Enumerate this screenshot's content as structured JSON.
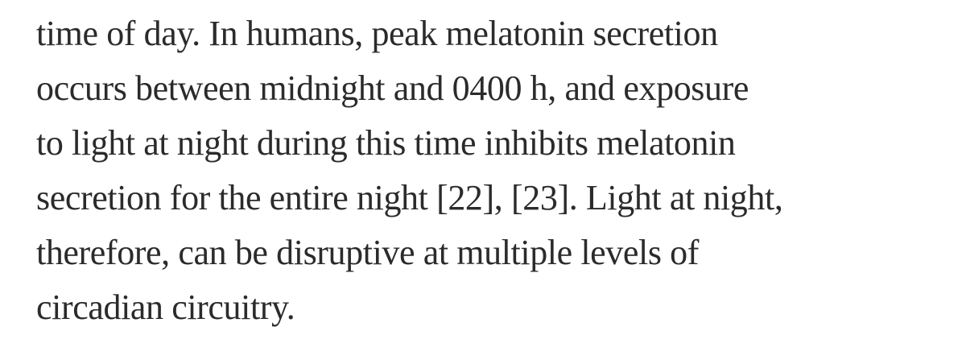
{
  "article": {
    "lines": [
      "time of day. In humans, peak melatonin secretion",
      "occurs between midnight and 0400 h, and exposure",
      "to light at night during this time inhibits melatonin",
      "secretion for the entire night [22], [23]. Light at night,",
      "therefore, can be disruptive at multiple levels of",
      "circadian circuitry."
    ],
    "text_color": "#2b2b2b",
    "background_color": "#ffffff"
  }
}
